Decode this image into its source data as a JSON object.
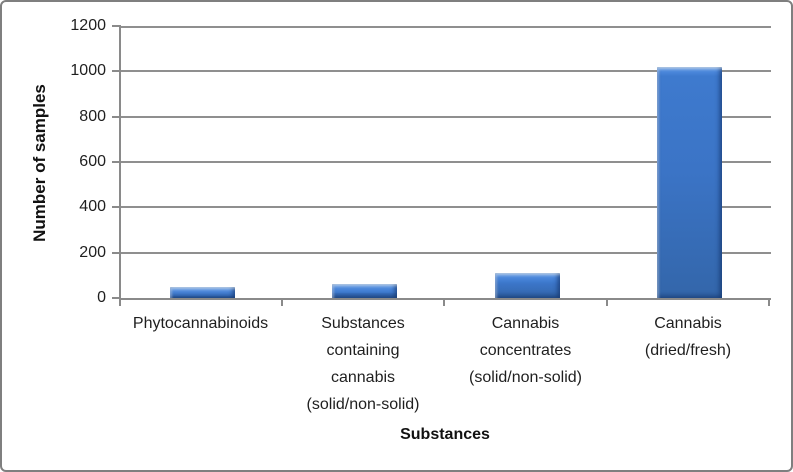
{
  "chart_data": {
    "type": "bar",
    "title": "",
    "xlabel": "Substances",
    "ylabel": "Number of samples",
    "categories": [
      "Phytocannabinoids",
      "Substances containing cannabis (solid/non-solid)",
      "Cannabis concentrates (solid/non-solid)",
      "Cannabis (dried/fresh)"
    ],
    "category_label_lines": [
      [
        "Phytocannabinoids"
      ],
      [
        "Substances",
        "containing",
        "cannabis",
        "(solid/non-solid)"
      ],
      [
        "Cannabis",
        "concentrates",
        "(solid/non-solid)"
      ],
      [
        "Cannabis",
        "(dried/fresh)"
      ]
    ],
    "values": [
      50,
      60,
      110,
      1020
    ],
    "ylim": [
      0,
      1200
    ],
    "yticks": [
      0,
      200,
      400,
      600,
      800,
      1000,
      1200
    ],
    "grid": "horizontal",
    "legend": "none",
    "colors": {
      "bar_fill": "#3B74C6",
      "bar_highlight": "#9CC5F2",
      "bar_edge_dark": "#2B5CA8",
      "gridline": "#8F8F8F",
      "axis": "#8A8A8A",
      "text": "#1F1F1F",
      "figure_border": "#7F7F7F",
      "background": "#FFFFFF"
    }
  }
}
